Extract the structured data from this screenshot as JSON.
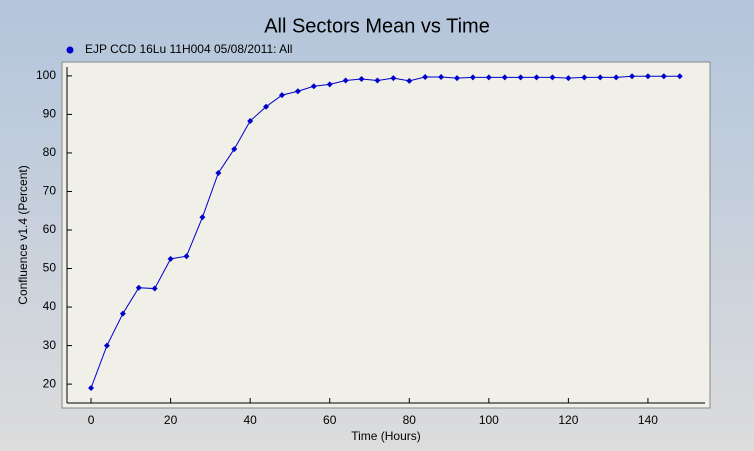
{
  "chart_data": {
    "type": "line",
    "title": "All Sectors Mean vs Time",
    "x_label": "Time (Hours)",
    "y_label": "Confluence v1.4 (Percent)",
    "x": [
      0,
      4,
      8,
      12,
      16,
      20,
      24,
      28,
      32,
      36,
      40,
      44,
      48,
      52,
      56,
      60,
      64,
      68,
      72,
      76,
      80,
      84,
      88,
      92,
      96,
      100,
      104,
      108,
      112,
      116,
      120,
      124,
      128,
      132,
      136,
      140,
      144,
      148
    ],
    "series": [
      {
        "name": "EJP CCD 16Lu 11H004 05/08/2011: All",
        "color": "#0000cc",
        "values": [
          19,
          30,
          38.3,
          45,
          44.8,
          52.5,
          53.2,
          63.3,
          74.8,
          81,
          88.3,
          92,
          95,
          96,
          97.3,
          97.8,
          98.8,
          99.2,
          98.8,
          99.4,
          98.7,
          99.7,
          99.7,
          99.4,
          99.6,
          99.6,
          99.6,
          99.6,
          99.6,
          99.6,
          99.4,
          99.6,
          99.6,
          99.6,
          99.9,
          99.9,
          99.9,
          99.9
        ]
      }
    ],
    "xlim": [
      -7.3,
      155.6
    ],
    "xticks": [
      0,
      20,
      40,
      60,
      80,
      100,
      120,
      140
    ],
    "ylim": [
      13.8,
      103.6
    ],
    "yticks": [
      20,
      30,
      40,
      50,
      60,
      70,
      80,
      90,
      100
    ],
    "legend": "top-left"
  }
}
